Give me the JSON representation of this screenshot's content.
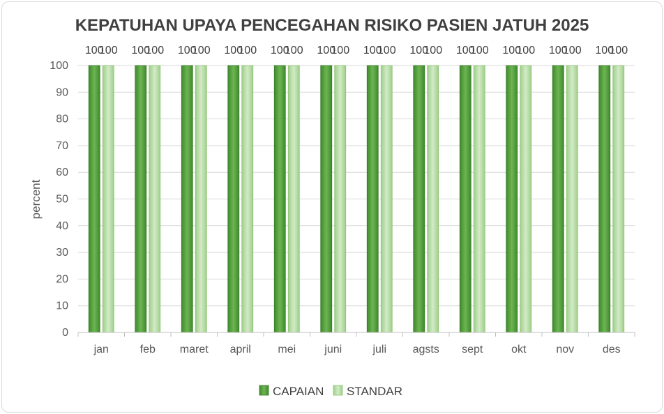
{
  "chart_data": {
    "type": "bar",
    "title": "KEPATUHAN UPAYA PENCEGAHAN RISIKO PASIEN JATUH 2025",
    "xlabel": "",
    "ylabel": "percent",
    "ylim": [
      0,
      100
    ],
    "yticks": [
      0,
      10,
      20,
      30,
      40,
      50,
      60,
      70,
      80,
      90,
      100
    ],
    "grid": true,
    "legend_position": "bottom",
    "categories": [
      "jan",
      "feb",
      "maret",
      "april",
      "mei",
      "juni",
      "juli",
      "agsts",
      "sept",
      "okt",
      "nov",
      "des"
    ],
    "series": [
      {
        "name": "CAPAIAN",
        "color": "#4e9a3a",
        "values": [
          100,
          100,
          100,
          100,
          100,
          100,
          100,
          100,
          100,
          100,
          100,
          100
        ]
      },
      {
        "name": "STANDAR",
        "color": "#b5dba3",
        "values": [
          100,
          100,
          100,
          100,
          100,
          100,
          100,
          100,
          100,
          100,
          100,
          100
        ]
      }
    ]
  }
}
